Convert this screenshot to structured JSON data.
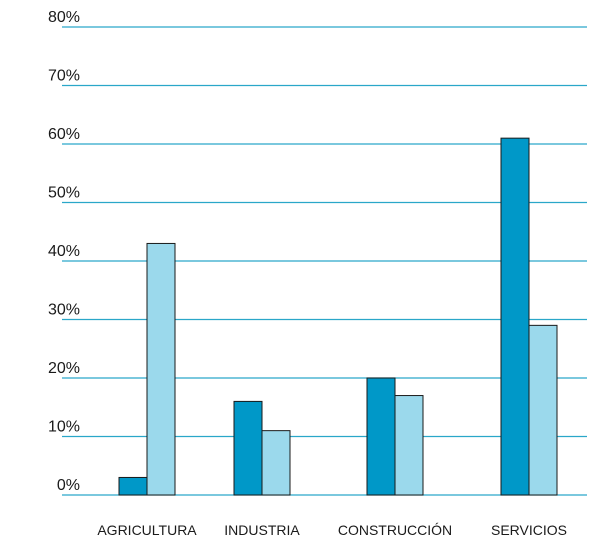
{
  "chart_data": {
    "type": "bar",
    "title": "",
    "xlabel": "",
    "ylabel": "",
    "categories": [
      "AGRICULTURA",
      "INDUSTRIA",
      "CONSTRUCCIÓN",
      "SERVICIOS"
    ],
    "series": [
      {
        "values": [
          3,
          16,
          20,
          61
        ],
        "color": "#0098c8"
      },
      {
        "values": [
          43,
          11,
          17,
          29
        ],
        "color": "#9bd9ec"
      }
    ],
    "ylim": [
      0,
      80
    ],
    "yticks": [
      0,
      10,
      20,
      30,
      40,
      50,
      60,
      70,
      80
    ],
    "ytick_labels": [
      "0%",
      "10%",
      "20%",
      "30%",
      "40%",
      "50%",
      "60%",
      "70%",
      "80%"
    ],
    "grid": true,
    "grid_color": "#2aa7c9",
    "legend": "none"
  }
}
